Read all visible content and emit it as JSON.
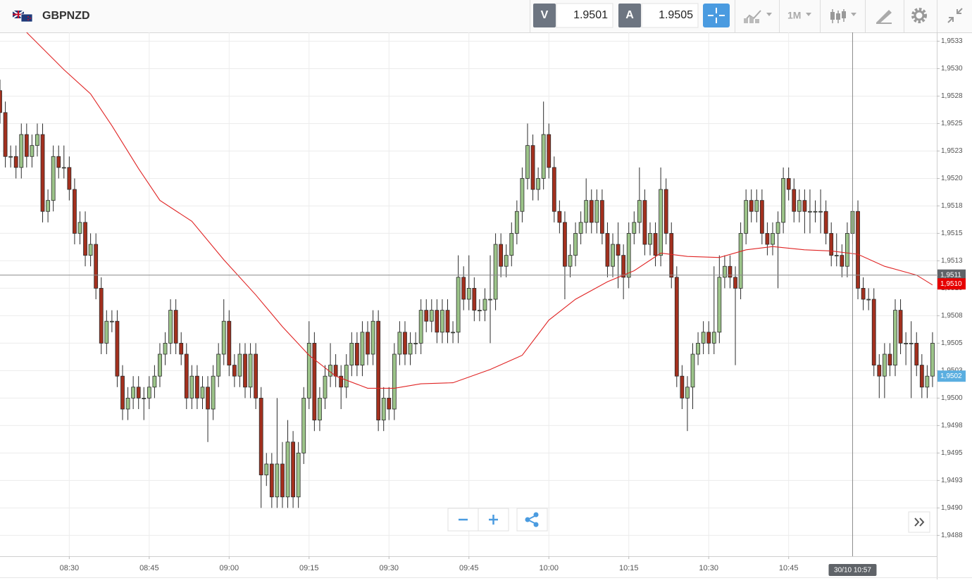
{
  "header": {
    "symbol": "GBPNZD",
    "bid_label": "V",
    "bid": "1.9501",
    "ask_label": "A",
    "ask": "1.9505",
    "timeframe": "1M"
  },
  "chart_data": {
    "type": "candlestick",
    "x": [
      497,
      498,
      499,
      500,
      501,
      502,
      503,
      504,
      505,
      506,
      507,
      508,
      509,
      510,
      511,
      512,
      513,
      514,
      515,
      516,
      517,
      518,
      519,
      520,
      521,
      522,
      523,
      524,
      525,
      526,
      527,
      528,
      529,
      530,
      531,
      532,
      533,
      534,
      535,
      536,
      537,
      538,
      539,
      540,
      541,
      542,
      543,
      544,
      545,
      546,
      547,
      548,
      549,
      550,
      551,
      552,
      553,
      554,
      555,
      556,
      557,
      558,
      559,
      560,
      561,
      562,
      563,
      564,
      565,
      566,
      567,
      568,
      569,
      570,
      571,
      572,
      573,
      574,
      575,
      576,
      577,
      578,
      579,
      580,
      581,
      582,
      583,
      584,
      585,
      586,
      587,
      588,
      589,
      590,
      591,
      592,
      593,
      594,
      595,
      596,
      597,
      598,
      599,
      600,
      601,
      602,
      603,
      604,
      605,
      606,
      607,
      608,
      609,
      610,
      611,
      612,
      613,
      614,
      615,
      616,
      617,
      618,
      619,
      620,
      621,
      622,
      623,
      624,
      625,
      626,
      627,
      628,
      629,
      630,
      631,
      632,
      633,
      634,
      635,
      636,
      637,
      638,
      639,
      640,
      641,
      642,
      643,
      644,
      645,
      646,
      647,
      648,
      649,
      650,
      651,
      652,
      653,
      654,
      655,
      656,
      657,
      658,
      659,
      660,
      661,
      662,
      663,
      664,
      665,
      666,
      667,
      668,
      669,
      670,
      671,
      672
    ],
    "open": [
      1.9528,
      1.9526,
      1.9522,
      1.9522,
      1.9521,
      1.9524,
      1.9522,
      1.9523,
      1.9524,
      1.9517,
      1.9518,
      1.9522,
      1.9521,
      1.9521,
      1.9519,
      1.9515,
      1.9516,
      1.9513,
      1.9514,
      1.951,
      1.9505,
      1.9507,
      1.9507,
      1.9502,
      1.9499,
      1.95,
      1.9501,
      1.95,
      1.95,
      1.9501,
      1.9502,
      1.9504,
      1.9505,
      1.9508,
      1.9505,
      1.9504,
      1.95,
      1.9502,
      1.95,
      1.9501,
      1.9499,
      1.9502,
      1.9504,
      1.9507,
      1.9503,
      1.9502,
      1.9504,
      1.9501,
      1.9504,
      1.95,
      1.9493,
      1.9494,
      1.9491,
      1.9494,
      1.9491,
      1.9496,
      1.9491,
      1.9495,
      1.95,
      1.9505,
      1.9498,
      1.95,
      1.9502,
      1.9503,
      1.9502,
      1.9501,
      1.9503,
      1.9505,
      1.9503,
      1.9506,
      1.9504,
      1.9507,
      1.9498,
      1.95,
      1.9499,
      1.9504,
      1.9506,
      1.9504,
      1.9505,
      1.9505,
      1.9508,
      1.9507,
      1.9508,
      1.9506,
      1.9508,
      1.9506,
      1.9506,
      1.9511,
      1.9509,
      1.951,
      1.9508,
      1.9508,
      1.9509,
      1.9509,
      1.9514,
      1.9512,
      1.9513,
      1.9515,
      1.9517,
      1.952,
      1.9523,
      1.9519,
      1.952,
      1.9524,
      1.9521,
      1.9517,
      1.9516,
      1.9512,
      1.9513,
      1.9515,
      1.9516,
      1.9518,
      1.9516,
      1.9518,
      1.9515,
      1.9512,
      1.9514,
      1.9513,
      1.9511,
      1.9515,
      1.9516,
      1.9518,
      1.9514,
      1.9515,
      1.9513,
      1.9519,
      1.9515,
      1.9511,
      1.9502,
      1.95,
      1.9501,
      1.9504,
      1.9505,
      1.9506,
      1.9505,
      1.9506,
      1.9511,
      1.9512,
      1.9511,
      1.951,
      1.9515,
      1.9518,
      1.9517,
      1.9518,
      1.9515,
      1.9514,
      1.9515,
      1.9516,
      1.952,
      1.9519,
      1.9517,
      1.9518,
      1.9517,
      1.9517,
      1.9517,
      1.9517,
      1.9515,
      1.9513,
      1.9513,
      1.9512,
      1.9515,
      1.9517,
      1.951,
      1.9509,
      1.9509,
      1.9503,
      1.9502,
      1.9504,
      1.9503,
      1.9508,
      1.9505,
      1.9505,
      1.9505,
      1.9503,
      1.9501,
      1.9502
    ],
    "high": [
      1.9529,
      1.9527,
      1.9523,
      1.9523,
      1.9525,
      1.9525,
      1.9524,
      1.9525,
      1.9525,
      1.9519,
      1.9523,
      1.9523,
      1.9523,
      1.9522,
      1.952,
      1.9517,
      1.9517,
      1.9515,
      1.9515,
      1.9511,
      1.9508,
      1.9508,
      1.9508,
      1.9503,
      1.9501,
      1.9502,
      1.9502,
      1.9501,
      1.9502,
      1.9503,
      1.9505,
      1.9506,
      1.9509,
      1.9509,
      1.9506,
      1.9505,
      1.9503,
      1.9503,
      1.9502,
      1.9502,
      1.9503,
      1.9505,
      1.9509,
      1.9508,
      1.9504,
      1.9505,
      1.9505,
      1.9505,
      1.9505,
      1.9501,
      1.9495,
      1.9495,
      1.95,
      1.9496,
      1.9498,
      1.9497,
      1.9496,
      1.9501,
      1.9507,
      1.9506,
      1.9501,
      1.9503,
      1.9505,
      1.9504,
      1.9503,
      1.9504,
      1.9506,
      1.9506,
      1.9507,
      1.9507,
      1.9508,
      1.9508,
      1.9501,
      1.9501,
      1.9505,
      1.9507,
      1.9507,
      1.9506,
      1.9506,
      1.9509,
      1.9509,
      1.9509,
      1.9509,
      1.9509,
      1.9509,
      1.9507,
      1.9513,
      1.9512,
      1.9513,
      1.9511,
      1.9509,
      1.951,
      1.9513,
      1.9515,
      1.9515,
      1.9514,
      1.9516,
      1.9518,
      1.9521,
      1.9525,
      1.9524,
      1.9521,
      1.9527,
      1.9525,
      1.9522,
      1.9518,
      1.9517,
      1.9514,
      1.9516,
      1.9517,
      1.952,
      1.9519,
      1.9519,
      1.9519,
      1.9516,
      1.9515,
      1.9516,
      1.9514,
      1.9516,
      1.9517,
      1.9521,
      1.9519,
      1.9516,
      1.9516,
      1.9521,
      1.952,
      1.9516,
      1.9512,
      1.9503,
      1.9502,
      1.9505,
      1.9506,
      1.9507,
      1.9507,
      1.9512,
      1.9513,
      1.9513,
      1.9513,
      1.9512,
      1.9516,
      1.9519,
      1.9519,
      1.9519,
      1.9519,
      1.9516,
      1.9516,
      1.9517,
      1.9521,
      1.9521,
      1.952,
      1.9519,
      1.9519,
      1.9519,
      1.9518,
      1.9519,
      1.9518,
      1.9516,
      1.9515,
      1.9514,
      1.9516,
      1.9518,
      1.9518,
      1.9511,
      1.951,
      1.951,
      1.9504,
      1.9505,
      1.9505,
      1.9509,
      1.9509,
      1.9506,
      1.9507,
      1.9506,
      1.9504,
      1.9503,
      1.9506
    ],
    "low": [
      1.9525,
      1.9521,
      1.9521,
      1.952,
      1.952,
      1.9521,
      1.9521,
      1.9522,
      1.9516,
      1.9516,
      1.9517,
      1.952,
      1.952,
      1.9518,
      1.9514,
      1.9514,
      1.9512,
      1.9512,
      1.9509,
      1.9504,
      1.9504,
      1.9506,
      1.9501,
      1.9498,
      1.9498,
      1.9499,
      1.9499,
      1.9498,
      1.9499,
      1.95,
      1.9501,
      1.9503,
      1.9504,
      1.9504,
      1.9503,
      1.9499,
      1.9499,
      1.9499,
      1.9499,
      1.9496,
      1.9498,
      1.9501,
      1.9503,
      1.9502,
      1.9501,
      1.9501,
      1.95,
      1.95,
      1.9499,
      1.949,
      1.9492,
      1.949,
      1.949,
      1.949,
      1.949,
      1.949,
      1.949,
      1.9494,
      1.9499,
      1.9497,
      1.9497,
      1.9499,
      1.9501,
      1.9501,
      1.9499,
      1.95,
      1.9502,
      1.9502,
      1.9502,
      1.9503,
      1.9503,
      1.9497,
      1.9497,
      1.9498,
      1.9498,
      1.9503,
      1.9503,
      1.9503,
      1.9504,
      1.9504,
      1.9506,
      1.9506,
      1.9505,
      1.9505,
      1.9505,
      1.9505,
      1.9505,
      1.9508,
      1.9508,
      1.9507,
      1.9507,
      1.9507,
      1.9505,
      1.9508,
      1.9511,
      1.9511,
      1.9512,
      1.9514,
      1.9516,
      1.9519,
      1.9518,
      1.9518,
      1.9519,
      1.952,
      1.9516,
      1.9515,
      1.9509,
      1.9511,
      1.9512,
      1.9514,
      1.9515,
      1.9515,
      1.9515,
      1.9514,
      1.9511,
      1.9511,
      1.951,
      1.9509,
      1.951,
      1.9514,
      1.9515,
      1.9513,
      1.9513,
      1.9512,
      1.9512,
      1.9514,
      1.951,
      1.9501,
      1.9499,
      1.9497,
      1.9499,
      1.9503,
      1.9504,
      1.9504,
      1.9504,
      1.9505,
      1.951,
      1.951,
      1.9503,
      1.9509,
      1.9514,
      1.9516,
      1.9516,
      1.9514,
      1.9513,
      1.9513,
      1.951,
      1.9515,
      1.9518,
      1.9516,
      1.9516,
      1.9515,
      1.9515,
      1.9516,
      1.9515,
      1.9514,
      1.9512,
      1.9512,
      1.9511,
      1.9511,
      1.9514,
      1.9509,
      1.9508,
      1.9508,
      1.9502,
      1.95,
      1.95,
      1.9502,
      1.9502,
      1.9504,
      1.9503,
      1.95,
      1.9502,
      1.95,
      1.95,
      1.9501
    ],
    "close": [
      1.9526,
      1.9522,
      1.9522,
      1.9521,
      1.9524,
      1.9522,
      1.9523,
      1.9524,
      1.9517,
      1.9518,
      1.9522,
      1.9521,
      1.9521,
      1.9519,
      1.9515,
      1.9516,
      1.9513,
      1.9514,
      1.951,
      1.9505,
      1.9507,
      1.9507,
      1.9502,
      1.9499,
      1.95,
      1.9501,
      1.95,
      1.95,
      1.9501,
      1.9502,
      1.9504,
      1.9505,
      1.9508,
      1.9505,
      1.9504,
      1.95,
      1.9502,
      1.95,
      1.9501,
      1.9499,
      1.9502,
      1.9504,
      1.9507,
      1.9503,
      1.9502,
      1.9504,
      1.9501,
      1.9504,
      1.95,
      1.9493,
      1.9494,
      1.9491,
      1.9494,
      1.9491,
      1.9496,
      1.9491,
      1.9495,
      1.95,
      1.9505,
      1.9498,
      1.95,
      1.9502,
      1.9503,
      1.9502,
      1.9501,
      1.9503,
      1.9505,
      1.9503,
      1.9506,
      1.9504,
      1.9507,
      1.9498,
      1.95,
      1.9499,
      1.9504,
      1.9506,
      1.9504,
      1.9505,
      1.9505,
      1.9508,
      1.9507,
      1.9508,
      1.9506,
      1.9508,
      1.9506,
      1.9506,
      1.9511,
      1.9509,
      1.951,
      1.9508,
      1.9508,
      1.9509,
      1.9509,
      1.9514,
      1.9512,
      1.9513,
      1.9515,
      1.9517,
      1.952,
      1.9523,
      1.9519,
      1.952,
      1.9524,
      1.9521,
      1.9517,
      1.9516,
      1.9512,
      1.9513,
      1.9515,
      1.9516,
      1.9518,
      1.9516,
      1.9518,
      1.9515,
      1.9512,
      1.9514,
      1.9513,
      1.9511,
      1.9515,
      1.9516,
      1.9518,
      1.9514,
      1.9515,
      1.9513,
      1.9519,
      1.9515,
      1.9511,
      1.9502,
      1.95,
      1.9501,
      1.9504,
      1.9505,
      1.9506,
      1.9505,
      1.9506,
      1.9511,
      1.9512,
      1.9511,
      1.951,
      1.9515,
      1.9518,
      1.9517,
      1.9518,
      1.9515,
      1.9514,
      1.9515,
      1.9516,
      1.952,
      1.9519,
      1.9517,
      1.9518,
      1.9517,
      1.9517,
      1.9517,
      1.9517,
      1.9515,
      1.9513,
      1.9513,
      1.9512,
      1.9515,
      1.9517,
      1.951,
      1.9509,
      1.9509,
      1.9503,
      1.9502,
      1.9504,
      1.9503,
      1.9508,
      1.9505,
      1.9505,
      1.9505,
      1.9503,
      1.9501,
      1.9502,
      1.9505
    ],
    "up_color": "#9cc489",
    "down_color": "#a3301e",
    "outline_color": "#2b2b2b",
    "ma": {
      "color": "#e02424",
      "x": [
        502,
        509,
        514,
        518,
        523,
        527,
        533,
        539,
        545,
        550,
        555,
        560,
        566,
        571,
        576,
        582,
        589,
        595,
        600,
        605,
        611,
        616,
        621,
        626,
        632,
        637,
        642,
        648,
        653,
        658,
        663,
        669,
        672
      ],
      "values": [
        1.95333,
        1.95299,
        1.95277,
        1.95248,
        1.95209,
        1.9518,
        1.95161,
        1.95126,
        1.95094,
        1.95065,
        1.95039,
        1.9502,
        1.95009,
        1.95009,
        1.95013,
        1.95014,
        1.95026,
        1.95039,
        1.95071,
        1.9509,
        1.95106,
        1.95116,
        1.95132,
        1.95129,
        1.95128,
        1.95135,
        1.95138,
        1.95135,
        1.95134,
        1.95131,
        1.9512,
        1.95112,
        1.95103
      ]
    },
    "xlim": [
      497,
      672.8
    ],
    "ylim": [
      1.94856,
      1.95333
    ],
    "xticks": [
      {
        "value": 510,
        "label": "08:30"
      },
      {
        "value": 525,
        "label": "08:45"
      },
      {
        "value": 540,
        "label": "09:00"
      },
      {
        "value": 555,
        "label": "09:15"
      },
      {
        "value": 570,
        "label": "09:30"
      },
      {
        "value": 585,
        "label": "09:45"
      },
      {
        "value": 600,
        "label": "10:00"
      },
      {
        "value": 615,
        "label": "10:15"
      },
      {
        "value": 630,
        "label": "10:30"
      },
      {
        "value": 645,
        "label": "10:45"
      }
    ],
    "yticks": [
      {
        "value": 1.95325,
        "label": "1,9533"
      },
      {
        "value": 1.953,
        "label": "1,9530"
      },
      {
        "value": 1.95275,
        "label": "1,9528"
      },
      {
        "value": 1.9525,
        "label": "1,9525"
      },
      {
        "value": 1.95225,
        "label": "1,9523"
      },
      {
        "value": 1.952,
        "label": "1,9520"
      },
      {
        "value": 1.95175,
        "label": "1,9518"
      },
      {
        "value": 1.9515,
        "label": "1,9515"
      },
      {
        "value": 1.95125,
        "label": "1,9513"
      },
      {
        "value": 1.951,
        "label": "1,9510"
      },
      {
        "value": 1.95075,
        "label": "1,9508"
      },
      {
        "value": 1.9505,
        "label": "1,9505"
      },
      {
        "value": 1.95025,
        "label": "1,9503"
      },
      {
        "value": 1.95,
        "label": "1,9500"
      },
      {
        "value": 1.94975,
        "label": "1,9498"
      },
      {
        "value": 1.9495,
        "label": "1,9495"
      },
      {
        "value": 1.94925,
        "label": "1,9493"
      },
      {
        "value": 1.949,
        "label": "1,9490"
      },
      {
        "value": 1.94875,
        "label": "1,9488"
      }
    ],
    "grid": true,
    "price_markers": [
      {
        "value": 1.95104,
        "label": "1,9510",
        "color": "#e60000"
      },
      {
        "value": 1.9502,
        "label": "1,9502",
        "color": "#5aaee0"
      }
    ],
    "crosshair": {
      "x": 657,
      "x_label": "30/10 10:57",
      "y": 1.95112,
      "y_label": "1,9511",
      "color": "#8a8a8a"
    }
  }
}
